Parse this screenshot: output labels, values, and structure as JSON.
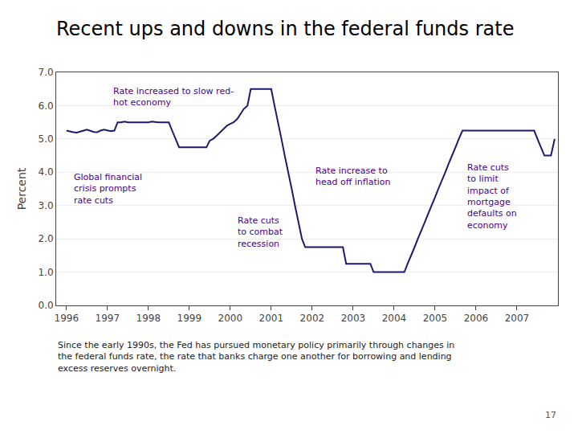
{
  "chart_data": {
    "type": "line",
    "title": "Recent ups and downs in the federal funds rate",
    "y_label": "Percent",
    "color": "#1a1a6e",
    "grid": true,
    "xlim": [
      1995.75,
      2008.0
    ],
    "xticks": [
      1996,
      1997,
      1998,
      1999,
      2000,
      2001,
      2002,
      2003,
      2004,
      2005,
      2006,
      2007
    ],
    "ylim": [
      0.0,
      7.0
    ],
    "yticks": [
      {
        "value": 0.0,
        "label": "0.0"
      },
      {
        "value": 1.0,
        "label": "1.0"
      },
      {
        "value": 2.0,
        "label": "2.0"
      },
      {
        "value": 3.0,
        "label": "3.0"
      },
      {
        "value": 4.0,
        "label": "4.0"
      },
      {
        "value": 5.0,
        "label": "5.0"
      },
      {
        "value": 6.0,
        "label": "6.0"
      },
      {
        "value": 7.0,
        "label": "7.0"
      }
    ],
    "annotations": [
      {
        "text": "Rate increased to slow red-\nhot economy",
        "x": 1997.1,
        "y": 6.65,
        "color": "#4B0082"
      },
      {
        "text": "Global financial\ncrisis prompts\nrate cuts",
        "x": 1996.15,
        "y": 4.05,
        "color": "#4B0082"
      },
      {
        "text": "Rate cuts\nto combat\nrecession",
        "x": 2000.15,
        "y": 2.75,
        "color": "#4B0082"
      },
      {
        "text": "Rate increase to\nhead off inflation",
        "x": 2002.05,
        "y": 4.25,
        "color": "#4B0082"
      },
      {
        "text": "Rate cuts\nto limit\nimpact of\nmortgage\ndefaults on\neconomy",
        "x": 2005.75,
        "y": 4.35,
        "color": "#4B0082"
      }
    ],
    "footnote": "Since the early 1990s, the Fed has pursued monetary policy primarily through changes in\nthe federal funds rate, the rate that banks charge one another for borrowing and lending\nexcess reserves overnight.",
    "page_number": "17",
    "x": [
      1996.0,
      1996.08,
      1996.17,
      1996.25,
      1996.33,
      1996.42,
      1996.5,
      1996.58,
      1996.67,
      1996.75,
      1996.83,
      1996.92,
      1997.0,
      1997.08,
      1997.17,
      1997.25,
      1997.33,
      1997.42,
      1997.5,
      1997.58,
      1997.67,
      1997.75,
      1997.83,
      1997.92,
      1998.0,
      1998.08,
      1998.17,
      1998.25,
      1998.33,
      1998.42,
      1998.5,
      1998.58,
      1998.67,
      1998.75,
      1998.83,
      1998.92,
      1999.0,
      1999.08,
      1999.17,
      1999.25,
      1999.33,
      1999.42,
      1999.5,
      1999.58,
      1999.67,
      1999.75,
      1999.83,
      1999.92,
      2000.0,
      2000.08,
      2000.17,
      2000.25,
      2000.33,
      2000.42,
      2000.5,
      2000.58,
      2000.67,
      2000.75,
      2000.83,
      2000.92,
      2001.0,
      2001.08,
      2001.17,
      2001.25,
      2001.33,
      2001.42,
      2001.5,
      2001.58,
      2001.67,
      2001.75,
      2001.83,
      2001.92,
      2002.0,
      2002.08,
      2002.17,
      2002.25,
      2002.33,
      2002.42,
      2002.5,
      2002.58,
      2002.67,
      2002.75,
      2002.83,
      2002.92,
      2003.0,
      2003.08,
      2003.17,
      2003.25,
      2003.33,
      2003.42,
      2003.5,
      2003.58,
      2003.67,
      2003.75,
      2003.83,
      2003.92,
      2004.0,
      2004.08,
      2004.17,
      2004.25,
      2004.33,
      2004.42,
      2004.5,
      2004.58,
      2004.67,
      2004.75,
      2004.83,
      2004.92,
      2005.0,
      2005.08,
      2005.17,
      2005.25,
      2005.33,
      2005.42,
      2005.5,
      2005.58,
      2005.67,
      2005.75,
      2005.83,
      2005.92,
      2006.0,
      2006.08,
      2006.17,
      2006.25,
      2006.33,
      2006.42,
      2006.5,
      2006.58,
      2006.67,
      2006.75,
      2006.83,
      2006.92,
      2007.0,
      2007.08,
      2007.17,
      2007.25,
      2007.33,
      2007.42,
      2007.5,
      2007.58,
      2007.67,
      2007.75,
      2007.83,
      2007.92
    ],
    "values": [
      5.25,
      5.22,
      5.2,
      5.19,
      5.21,
      5.25,
      5.28,
      5.25,
      5.21,
      5.2,
      5.25,
      5.28,
      5.25,
      5.23,
      5.25,
      5.5,
      5.5,
      5.52,
      5.5,
      5.5,
      5.5,
      5.5,
      5.5,
      5.5,
      5.5,
      5.52,
      5.5,
      5.5,
      5.5,
      5.5,
      5.5,
      5.25,
      5.0,
      4.75,
      4.75,
      4.75,
      4.75,
      4.74,
      4.74,
      4.75,
      4.75,
      4.75,
      4.95,
      5.0,
      5.1,
      5.2,
      5.3,
      5.4,
      5.45,
      5.5,
      5.6,
      5.75,
      5.9,
      6.0,
      6.5,
      6.5,
      6.5,
      6.5,
      6.5,
      6.5,
      6.5,
      6.0,
      5.5,
      5.0,
      4.5,
      4.0,
      3.5,
      3.0,
      2.5,
      2.0,
      1.75,
      1.75,
      1.75,
      1.75,
      1.75,
      1.75,
      1.75,
      1.75,
      1.75,
      1.75,
      1.75,
      1.75,
      1.25,
      1.25,
      1.25,
      1.25,
      1.25,
      1.25,
      1.25,
      1.25,
      1.0,
      1.0,
      1.0,
      1.0,
      1.0,
      1.0,
      1.0,
      1.0,
      1.0,
      1.0,
      1.25,
      1.5,
      1.75,
      2.0,
      2.25,
      2.5,
      2.75,
      3.0,
      3.25,
      3.5,
      3.75,
      4.0,
      4.25,
      4.5,
      4.75,
      5.0,
      5.25,
      5.25,
      5.25,
      5.25,
      5.25,
      5.25,
      5.25,
      5.25,
      5.25,
      5.25,
      5.25,
      5.25,
      5.25,
      5.25,
      5.25,
      5.25,
      5.25,
      5.25,
      5.25,
      5.25,
      5.25,
      5.25,
      5.0,
      4.75,
      4.5,
      4.5,
      4.5,
      5.0
    ]
  }
}
